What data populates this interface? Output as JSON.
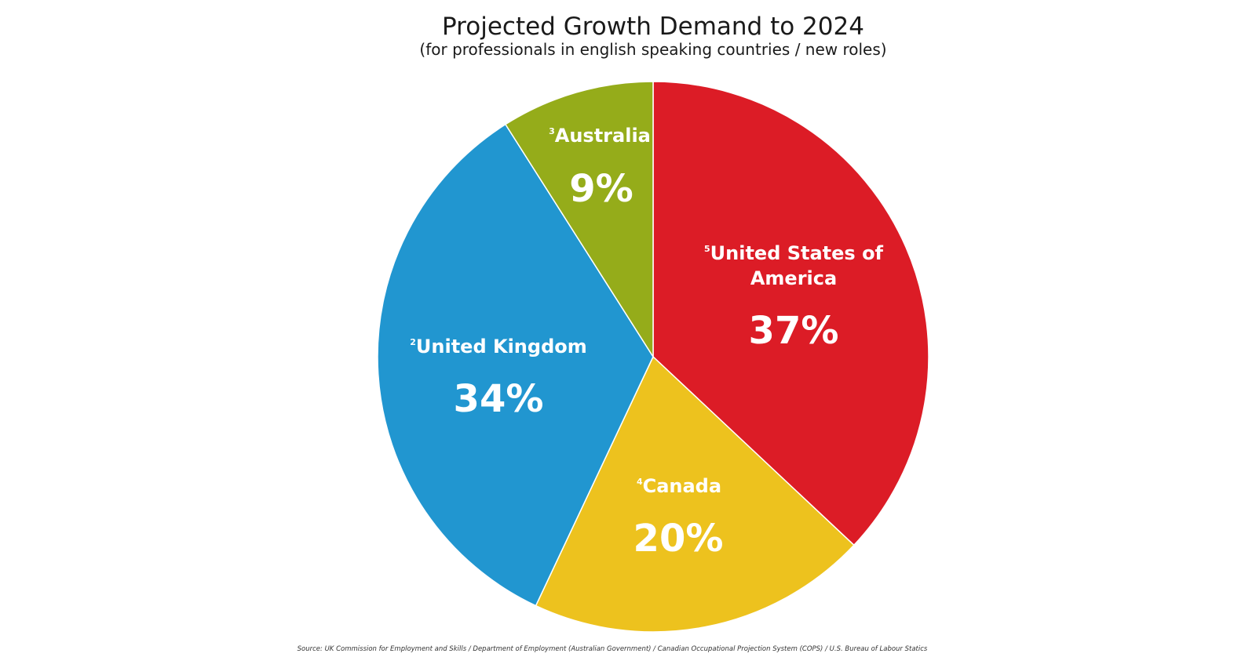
{
  "chart_data": {
    "type": "pie",
    "title": "Projected Growth Demand to 2024",
    "subtitle": "(for professionals in english speaking countries / new roles)",
    "start_angle": "12 o'clock, clockwise",
    "slices": [
      {
        "label": "United States of America",
        "label_lines": [
          "United States of",
          "America"
        ],
        "note": "5",
        "value": 37,
        "value_label": "37%",
        "color": "#DC1C26"
      },
      {
        "label": "Canada",
        "label_lines": [
          "Canada"
        ],
        "note": "4",
        "value": 20,
        "value_label": "20%",
        "color": "#EDC21E"
      },
      {
        "label": "United Kingdom",
        "label_lines": [
          "United Kingdom"
        ],
        "note": "2",
        "value": 34,
        "value_label": "34%",
        "color": "#2196D0"
      },
      {
        "label": "Australia",
        "label_lines": [
          "Australia"
        ],
        "note": "3",
        "value": 9,
        "value_label": "9%",
        "color": "#95AC1A"
      }
    ],
    "source": "Source:  UK Commission for Employment and Skills / Department of Employment (Australian Government) / Canadian Occupational Projection System (COPS) / U.S. Bureau of Labour Statics"
  }
}
